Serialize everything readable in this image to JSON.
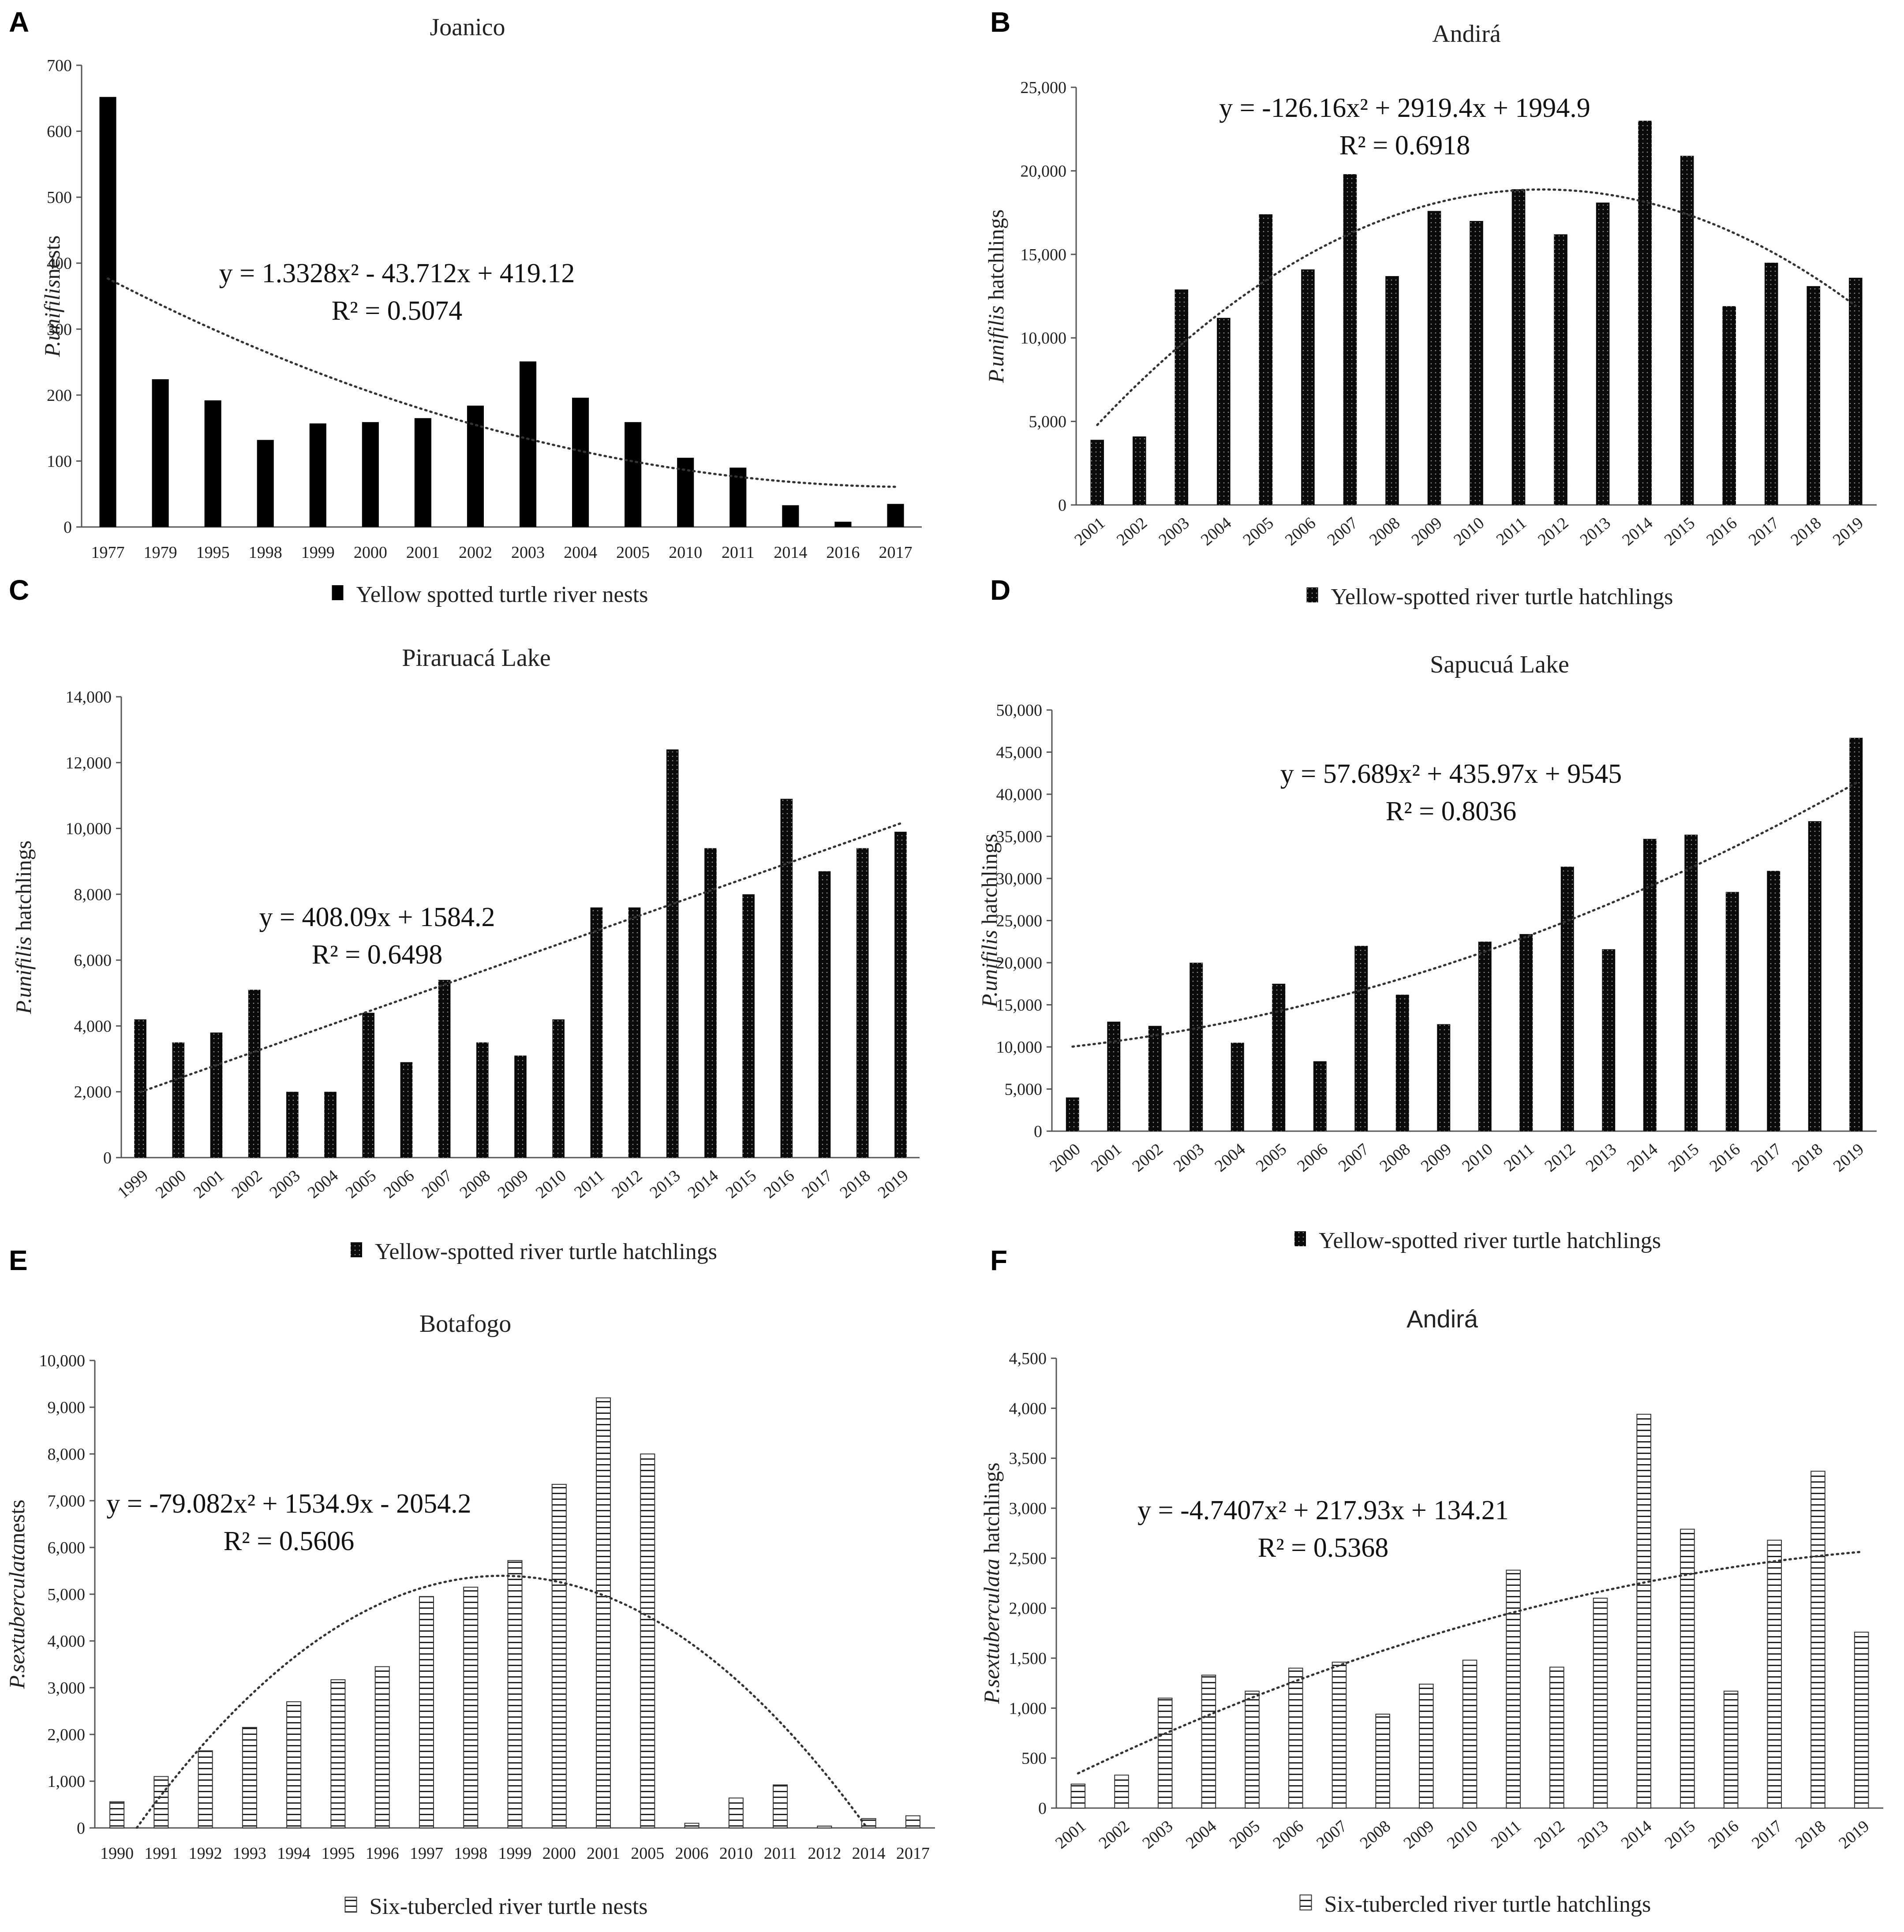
{
  "colors": {
    "solid": "#000000",
    "dotted_base": "#0a0a0a",
    "hatched_line": "#222222"
  },
  "chart_data": [
    {
      "panel": "A",
      "type": "bar",
      "style": "solid",
      "title": "Joanico",
      "ylabel_species": "P.unifilis",
      "ylabel_rest": "nests",
      "legend": "Yellow spotted turtle river nests",
      "categories": [
        "1977",
        "1979",
        "1995",
        "1998",
        "1999",
        "2000",
        "2001",
        "2002",
        "2003",
        "2004",
        "2005",
        "2010",
        "2011",
        "2014",
        "2016",
        "2017"
      ],
      "values": [
        652,
        224,
        192,
        132,
        157,
        159,
        165,
        184,
        251,
        196,
        159,
        105,
        90,
        33,
        8,
        35
      ],
      "ylim": [
        0,
        700
      ],
      "yticks": [
        0,
        100,
        200,
        300,
        400,
        500,
        600,
        700
      ],
      "tick_format": "plain",
      "rotate_x": false,
      "equation": "y = 1.3328x² - 43.712x + 419.12",
      "r2": "R² = 0.5074",
      "trend": {
        "kind": "poly2",
        "a": 1.3328,
        "b": -43.712,
        "c": 419.12
      }
    },
    {
      "panel": "B",
      "type": "bar",
      "style": "dotted",
      "title": "Andirá",
      "ylabel_species": "P.unifilis",
      "ylabel_rest": " hatchlings",
      "legend": "Yellow-spotted river turtle hatchlings",
      "categories": [
        "2001",
        "2002",
        "2003",
        "2004",
        "2005",
        "2006",
        "2007",
        "2008",
        "2009",
        "2010",
        "2011",
        "2012",
        "2013",
        "2014",
        "2015",
        "2016",
        "2017",
        "2018",
        "2019"
      ],
      "values": [
        3900,
        4100,
        12900,
        11200,
        17400,
        14100,
        19800,
        13700,
        17600,
        17000,
        18900,
        16200,
        18100,
        23000,
        20900,
        11900,
        14500,
        13100,
        13600
      ],
      "ylim": [
        0,
        25000
      ],
      "yticks": [
        0,
        5000,
        10000,
        15000,
        20000,
        25000
      ],
      "tick_format": "comma",
      "rotate_x": true,
      "equation": "y = -126.16x² + 2919.4x + 1994.9",
      "r2": "R² = 0.6918",
      "trend": {
        "kind": "poly2",
        "a": -126.16,
        "b": 2919.4,
        "c": 1994.9
      }
    },
    {
      "panel": "C",
      "type": "bar",
      "style": "dotted",
      "title": "Piraruacá Lake",
      "ylabel_species": "P.unifilis",
      "ylabel_rest": " hatchlings",
      "legend": "Yellow-spotted river turtle hatchlings",
      "categories": [
        "1999",
        "2000",
        "2001",
        "2002",
        "2003",
        "2004",
        "2005",
        "2006",
        "2007",
        "2008",
        "2009",
        "2010",
        "2011",
        "2012",
        "2013",
        "2014",
        "2015",
        "2016",
        "2017",
        "2018",
        "2019"
      ],
      "values": [
        4200,
        3500,
        3800,
        5100,
        2000,
        2000,
        4400,
        2900,
        5400,
        3500,
        3100,
        4200,
        7600,
        7600,
        12400,
        9400,
        8000,
        10900,
        8700,
        9400,
        9900
      ],
      "ylim": [
        0,
        14000
      ],
      "yticks": [
        0,
        2000,
        4000,
        6000,
        8000,
        10000,
        12000,
        14000
      ],
      "tick_format": "comma",
      "rotate_x": true,
      "equation": "y = 408.09x + 1584.2",
      "r2": "R² = 0.6498",
      "trend": {
        "kind": "linear",
        "m": 408.09,
        "c": 1584.2
      }
    },
    {
      "panel": "D",
      "type": "bar",
      "style": "dotted",
      "title": "Sapucuá Lake",
      "ylabel_species": "P.unifilis",
      "ylabel_rest": " hatchlings",
      "legend": "Yellow-spotted river turtle hatchlings",
      "categories": [
        "2000",
        "2001",
        "2002",
        "2003",
        "2004",
        "2005",
        "2006",
        "2007",
        "2008",
        "2009",
        "2010",
        "2011",
        "2012",
        "2013",
        "2014",
        "2015",
        "2016",
        "2017",
        "2018",
        "2019"
      ],
      "values": [
        4000,
        13000,
        12500,
        20000,
        10500,
        17500,
        8300,
        22000,
        16200,
        12700,
        22500,
        23400,
        31400,
        21600,
        34700,
        35200,
        28400,
        30900,
        36800,
        46700
      ],
      "ylim": [
        0,
        50000
      ],
      "yticks": [
        0,
        5000,
        10000,
        15000,
        20000,
        25000,
        30000,
        35000,
        40000,
        45000,
        50000
      ],
      "tick_format": "comma",
      "rotate_x": true,
      "equation": "y = 57.689x² + 435.97x + 9545",
      "r2": "R² = 0.8036",
      "trend": {
        "kind": "poly2",
        "a": 57.689,
        "b": 435.97,
        "c": 9545
      }
    },
    {
      "panel": "E",
      "type": "bar",
      "style": "hatched",
      "title": "Botafogo",
      "ylabel_species": "P.sextuberculata",
      "ylabel_rest": "nests",
      "legend": "Six-tubercled river turtle nests",
      "categories": [
        "1990",
        "1991",
        "1992",
        "1993",
        "1994",
        "1995",
        "1996",
        "1997",
        "1998",
        "1999",
        "2000",
        "2001",
        "2005",
        "2006",
        "2010",
        "2011",
        "2012",
        "2014",
        "2017"
      ],
      "values": [
        560,
        1100,
        1650,
        2150,
        2700,
        3170,
        3450,
        4950,
        5150,
        5720,
        7350,
        9200,
        8000,
        100,
        640,
        920,
        40,
        200,
        260
      ],
      "ylim": [
        0,
        10000
      ],
      "yticks": [
        0,
        1000,
        2000,
        3000,
        4000,
        5000,
        6000,
        7000,
        8000,
        9000,
        10000
      ],
      "tick_format": "comma",
      "rotate_x": false,
      "equation": "y = -79.082x² + 1534.9x - 2054.2",
      "r2": "R² = 0.5606",
      "trend": {
        "kind": "poly2",
        "a": -79.082,
        "b": 1534.9,
        "c": -2054.2
      }
    },
    {
      "panel": "F",
      "type": "bar",
      "style": "hatched",
      "title": "Andirá",
      "ylabel_species": "P.sextuberculata",
      "ylabel_rest": " hatchlings",
      "legend": "Six-tubercled river turtle hatchlings",
      "categories": [
        "2001",
        "2002",
        "2003",
        "2004",
        "2005",
        "2006",
        "2007",
        "2008",
        "2009",
        "2010",
        "2011",
        "2012",
        "2013",
        "2014",
        "2015",
        "2016",
        "2017",
        "2018",
        "2019"
      ],
      "values": [
        240,
        330,
        1100,
        1330,
        1170,
        1400,
        1460,
        940,
        1240,
        1480,
        2380,
        1410,
        2100,
        3940,
        2790,
        1170,
        2680,
        3370,
        1760
      ],
      "ylim": [
        0,
        4500
      ],
      "yticks": [
        0,
        500,
        1000,
        1500,
        2000,
        2500,
        3000,
        3500,
        4000,
        4500
      ],
      "tick_format": "comma",
      "rotate_x": true,
      "equation": "y = -4.7407x² + 217.93x + 134.21",
      "r2": "R² = 0.5368",
      "trend": {
        "kind": "poly2",
        "a": -4.7407,
        "b": 217.93,
        "c": 134.21
      }
    }
  ]
}
